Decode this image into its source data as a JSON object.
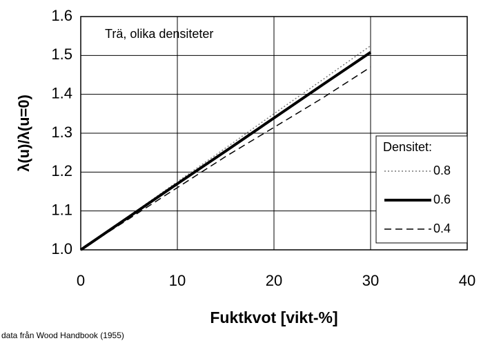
{
  "chart_data": {
    "type": "line",
    "title": "Trä, olika densiteter",
    "x_label": "Fuktkvot [vikt-%]",
    "y_label": "λ(u)/λ(u=0)",
    "note": "data från Wood Handbook (1955)",
    "legend_title": "Densitet:",
    "legend_position": "lower right",
    "grid": true,
    "x": [
      0,
      5,
      10,
      15,
      20,
      25,
      30
    ],
    "series": [
      {
        "name": "0.8",
        "color": "#777777",
        "style": "dotted",
        "values": [
          1.0,
          1.087,
          1.175,
          1.262,
          1.35,
          1.437,
          1.525
        ]
      },
      {
        "name": "0.6",
        "color": "#000000",
        "style": "solid",
        "values": [
          1.0,
          1.085,
          1.17,
          1.254,
          1.339,
          1.424,
          1.508
        ]
      },
      {
        "name": "0.4",
        "color": "#000000",
        "style": "dashed",
        "values": [
          1.0,
          1.08,
          1.16,
          1.24,
          1.315,
          1.39,
          1.47
        ]
      }
    ],
    "xlim": [
      0,
      40
    ],
    "xticks": [
      0,
      10,
      20,
      30,
      40
    ],
    "ylim": [
      1.0,
      1.6
    ],
    "yticks": [
      {
        "value": 1.0,
        "label": "1.0"
      },
      1.1,
      1.2,
      1.3,
      1.4,
      1.5,
      1.6
    ]
  }
}
